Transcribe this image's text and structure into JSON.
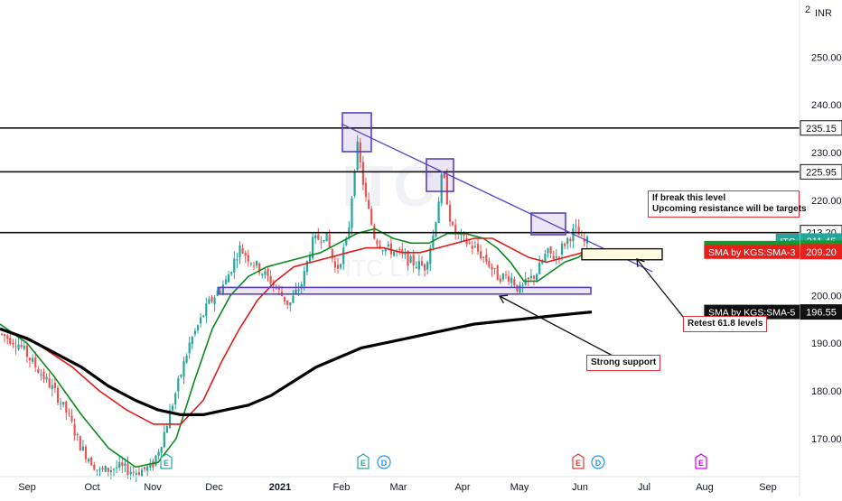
{
  "chart_data": {
    "type": "candlestick",
    "symbol": "ITC",
    "watermark_symbol": "ITC",
    "watermark_name": "ITC LTD",
    "currency": "INR",
    "ylim": [
      162,
      262
    ],
    "x_tick_labels": [
      "Sep",
      "Oct",
      "Nov",
      "Dec",
      "2021",
      "Feb",
      "Mar",
      "Apr",
      "May",
      "Jun",
      "Jul",
      "Aug",
      "Sep"
    ],
    "y_tick_labels": [
      "170.00",
      "180.00",
      "190.00",
      "200.00",
      "210.00",
      "220.00",
      "230.00",
      "240.00",
      "250.00"
    ],
    "y_tick_values": [
      170,
      180,
      190,
      200,
      210,
      220,
      230,
      240,
      250
    ],
    "top_axis_label": "2",
    "horizontal_levels": [
      235.15,
      225.95,
      213.2
    ],
    "support_zone": [
      200.3,
      201.7
    ],
    "retest_zone": [
      207.5,
      209.8
    ],
    "trendline": {
      "from": [
        236,
        "Feb"
      ],
      "to": [
        205,
        "Jul"
      ]
    },
    "price_labels": [
      {
        "text": "235.15",
        "value": 235.15,
        "bg": "#ffffff",
        "fg": "#111111"
      },
      {
        "text": "225.95",
        "value": 225.95,
        "bg": "#ffffff",
        "fg": "#111111"
      },
      {
        "text": "213.20",
        "value": 213.2,
        "bg": "#ffffff",
        "fg": "#111111"
      },
      {
        "text": "211.45",
        "value": 211.45,
        "bg": "#26a69a",
        "fg": "#ffffff",
        "tag": "ITC"
      },
      {
        "text": "209.95",
        "value": 209.95,
        "bg": "#0b9e2a",
        "fg": "#ffffff",
        "tag": "SMA by KGS:SMA-2"
      },
      {
        "text": "209.20",
        "value": 209.2,
        "bg": "#e8201c",
        "fg": "#ffffff",
        "tag": "SMA by KGS:SMA-3"
      },
      {
        "text": "196.55",
        "value": 196.55,
        "bg": "#111111",
        "fg": "#ffffff",
        "tag": "SMA by KGS:SMA-5"
      }
    ],
    "series": [
      {
        "name": "SMA by KGS:SMA-2",
        "color": "#0b8a1f",
        "last": 209.95
      },
      {
        "name": "SMA by KGS:SMA-3",
        "color": "#e01b1b",
        "last": 209.2
      },
      {
        "name": "SMA by KGS:SMA-5",
        "color": "#000000",
        "last": 196.55
      }
    ],
    "annotations": {
      "break_text_1": "If break this level",
      "break_text_2": "Upcoming resistance will be targets",
      "retest": "Retest 61.8 levels",
      "support": "Strong support"
    },
    "event_markers": [
      {
        "label": "E",
        "color": "#26a69a",
        "month": "Nov"
      },
      {
        "label": "E",
        "color": "#26a69a",
        "month": "Feb"
      },
      {
        "label": "D",
        "color": "#2196f3",
        "month": "Mar"
      },
      {
        "label": "E",
        "color": "#e53935",
        "month": "Jun"
      },
      {
        "label": "D",
        "color": "#2196f3",
        "month": "Jun"
      },
      {
        "label": "E",
        "color": "#d500f9",
        "month": "Aug"
      }
    ],
    "grid": false,
    "legend": "right-axis"
  }
}
